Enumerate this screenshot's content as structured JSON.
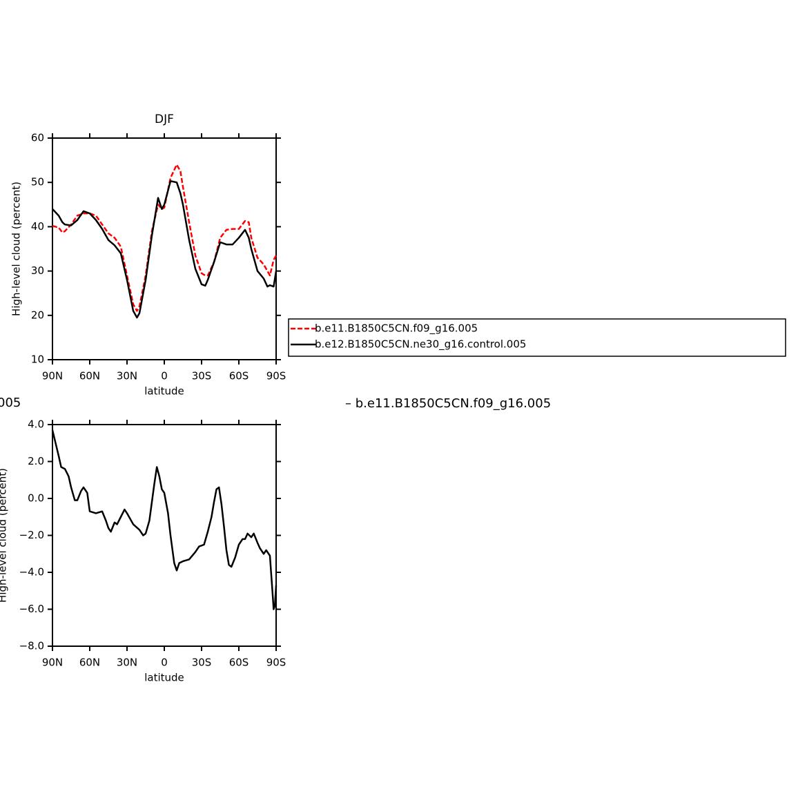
{
  "chart_data": [
    {
      "type": "line",
      "title": "DJF",
      "xlabel": "latitude",
      "ylabel": "High-level cloud (percent)",
      "x": [
        90,
        85,
        82,
        80,
        75,
        70,
        65,
        60,
        55,
        50,
        45,
        40,
        35,
        30,
        25,
        22,
        20,
        15,
        10,
        5,
        2,
        0,
        -5,
        -10,
        -13,
        -15,
        -20,
        -25,
        -30,
        -33,
        -35,
        -40,
        -45,
        -50,
        -55,
        -60,
        -65,
        -68,
        -70,
        -75,
        -80,
        -83,
        -85,
        -88,
        -90
      ],
      "series": [
        {
          "name": "b.e11.B1850C5CN.f09_g16.005",
          "color": "#ff0000",
          "dashed": true,
          "values": [
            40.2,
            39.8,
            38.7,
            39,
            40.5,
            42.5,
            43,
            43,
            42.5,
            40.5,
            38.5,
            37.5,
            35.5,
            29,
            22.5,
            21,
            22,
            29,
            39,
            45,
            44,
            44.3,
            51,
            54,
            52.5,
            49,
            41,
            33.5,
            29.5,
            29,
            29,
            32,
            37.5,
            39.3,
            39.5,
            39.5,
            41.3,
            41,
            37.5,
            33,
            31.5,
            30,
            29,
            32.5,
            33.5
          ]
        },
        {
          "name": "b.e12.B1850C5CN.ne30_g16.control.005",
          "color": "#000000",
          "dashed": false,
          "values": [
            44,
            42.5,
            41,
            40.5,
            40.3,
            41.5,
            43.5,
            43,
            41.5,
            39.5,
            37,
            35.8,
            34,
            28,
            21,
            19.5,
            20.5,
            28,
            38,
            46.5,
            44,
            45,
            50.3,
            50,
            47.5,
            45,
            37,
            30.5,
            27,
            26.7,
            28,
            32,
            36.5,
            36,
            36,
            37.5,
            39.3,
            37.5,
            35,
            30,
            28.3,
            26.5,
            26.8,
            26.5,
            30
          ]
        }
      ],
      "xlim": [
        90,
        -90
      ],
      "xticks": [
        {
          "value": 90,
          "label": "90N"
        },
        {
          "value": 60,
          "label": "60N"
        },
        {
          "value": 30,
          "label": "30N"
        },
        0,
        {
          "value": -30,
          "label": "30S"
        },
        {
          "value": -60,
          "label": "60S"
        },
        {
          "value": -90,
          "label": "90S"
        }
      ],
      "ylim": [
        10,
        60
      ],
      "yticks": [
        10,
        20,
        30,
        40,
        50,
        60
      ]
    },
    {
      "type": "line",
      "title_parts": [
        "005",
        "– b.e11.B1850C5CN.f09_g16.005"
      ],
      "xlabel": "latitude",
      "ylabel": "High-level cloud (percent)",
      "x": [
        90,
        85,
        83,
        80,
        77,
        75,
        72,
        70,
        67,
        65,
        62,
        60,
        55,
        50,
        47,
        45,
        43,
        40,
        38,
        35,
        32,
        30,
        25,
        20,
        17,
        15,
        12,
        8,
        6,
        4,
        2,
        0,
        -3,
        -5,
        -8,
        -10,
        -12,
        -15,
        -20,
        -25,
        -28,
        -32,
        -35,
        -38,
        -40,
        -42,
        -44,
        -46,
        -48,
        -50,
        -52,
        -54,
        -57,
        -60,
        -63,
        -65,
        -67,
        -70,
        -72,
        -75,
        -77,
        -80,
        -82,
        -85,
        -87,
        -88,
        -89,
        -90
      ],
      "color": "#000000",
      "values": [
        3.7,
        2.3,
        1.7,
        1.6,
        1.2,
        0.6,
        -0.1,
        -0.1,
        0.4,
        0.6,
        0.3,
        -0.7,
        -0.8,
        -0.7,
        -1.2,
        -1.6,
        -1.8,
        -1.3,
        -1.4,
        -1.0,
        -0.6,
        -0.8,
        -1.4,
        -1.7,
        -2.0,
        -1.9,
        -1.2,
        0.8,
        1.7,
        1.2,
        0.5,
        0.3,
        -0.8,
        -2.0,
        -3.5,
        -3.9,
        -3.5,
        -3.4,
        -3.3,
        -2.9,
        -2.6,
        -2.5,
        -1.8,
        -1.0,
        -0.2,
        0.5,
        0.6,
        -0.3,
        -1.5,
        -2.8,
        -3.6,
        -3.7,
        -3.2,
        -2.5,
        -2.2,
        -2.2,
        -1.9,
        -2.1,
        -1.9,
        -2.4,
        -2.7,
        -3.0,
        -2.8,
        -3.1,
        -5.0,
        -6.0,
        -5.8,
        -4.7
      ],
      "xlim": [
        90,
        -90
      ],
      "xticks": [
        {
          "value": 90,
          "label": "90N"
        },
        {
          "value": 60,
          "label": "60N"
        },
        {
          "value": 30,
          "label": "30N"
        },
        0,
        {
          "value": -30,
          "label": "30S"
        },
        {
          "value": -60,
          "label": "60S"
        },
        {
          "value": -90,
          "label": "90S"
        }
      ],
      "ylim": [
        -8,
        4
      ],
      "yticks": [
        {
          "value": -8,
          "label": "−8.0"
        },
        {
          "value": -6,
          "label": "−6.0"
        },
        {
          "value": -4,
          "label": "−4.0"
        },
        {
          "value": -2,
          "label": "−2.0"
        },
        {
          "value": 0,
          "label": "0.0"
        },
        {
          "value": 2,
          "label": "2.0"
        },
        {
          "value": 4,
          "label": "4.0"
        }
      ]
    }
  ]
}
